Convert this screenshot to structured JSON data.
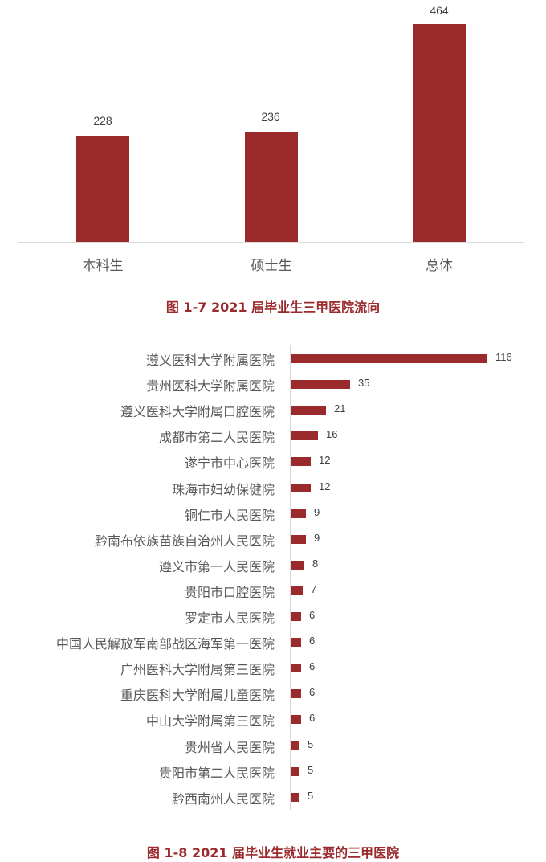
{
  "chart_data": [
    {
      "type": "bar",
      "orientation": "vertical",
      "title": "图 1-7 2021 届毕业生三甲医院流向",
      "categories": [
        "本科生",
        "硕士生",
        "总体"
      ],
      "values": [
        228,
        236,
        464
      ],
      "data_labels": [
        "228",
        "236",
        "464"
      ],
      "xlabel": "",
      "ylabel": "",
      "ylim": [
        0,
        464
      ],
      "grid": false,
      "color": "#9b2a2d"
    },
    {
      "type": "bar",
      "orientation": "horizontal",
      "title": "图 1-8 2021 届毕业生就业主要的三甲医院",
      "categories": [
        "遵义医科大学附属医院",
        "贵州医科大学附属医院",
        "遵义医科大学附属口腔医院",
        "成都市第二人民医院",
        "遂宁市中心医院",
        "珠海市妇幼保健院",
        "铜仁市人民医院",
        "黔南布依族苗族自治州人民医院",
        "遵义市第一人民医院",
        "贵阳市口腔医院",
        "罗定市人民医院",
        "中国人民解放军南部战区海军第一医院",
        "广州医科大学附属第三医院",
        "重庆医科大学附属儿童医院",
        "中山大学附属第三医院",
        "贵州省人民医院",
        "贵阳市第二人民医院",
        "黔西南州人民医院"
      ],
      "values": [
        116,
        35,
        21,
        16,
        12,
        12,
        9,
        9,
        8,
        7,
        6,
        6,
        6,
        6,
        6,
        5,
        5,
        5
      ],
      "xlabel": "",
      "ylabel": "",
      "grid": false,
      "color": "#9b2a2d"
    }
  ],
  "chart1": {
    "caption": "图 1-7 2021 届毕业生三甲医院流向",
    "bars": [
      {
        "label": "本科生",
        "value": "228"
      },
      {
        "label": "硕士生",
        "value": "236"
      },
      {
        "label": "总体",
        "value": "464"
      }
    ]
  },
  "chart2": {
    "caption": "图 1-8 2021 届毕业生就业主要的三甲医院",
    "rows": [
      {
        "label": "遵义医科大学附属医院",
        "value": "116"
      },
      {
        "label": "贵州医科大学附属医院",
        "value": "35"
      },
      {
        "label": "遵义医科大学附属口腔医院",
        "value": "21"
      },
      {
        "label": "成都市第二人民医院",
        "value": "16"
      },
      {
        "label": "遂宁市中心医院",
        "value": "12"
      },
      {
        "label": "珠海市妇幼保健院",
        "value": "12"
      },
      {
        "label": "铜仁市人民医院",
        "value": "9"
      },
      {
        "label": "黔南布依族苗族自治州人民医院",
        "value": "9"
      },
      {
        "label": "遵义市第一人民医院",
        "value": "8"
      },
      {
        "label": "贵阳市口腔医院",
        "value": "7"
      },
      {
        "label": "罗定市人民医院",
        "value": "6"
      },
      {
        "label": "中国人民解放军南部战区海军第一医院",
        "value": "6"
      },
      {
        "label": "广州医科大学附属第三医院",
        "value": "6"
      },
      {
        "label": "重庆医科大学附属儿童医院",
        "value": "6"
      },
      {
        "label": "中山大学附属第三医院",
        "value": "6"
      },
      {
        "label": "贵州省人民医院",
        "value": "5"
      },
      {
        "label": "贵阳市第二人民医院",
        "value": "5"
      },
      {
        "label": "黔西南州人民医院",
        "value": "5"
      }
    ]
  }
}
